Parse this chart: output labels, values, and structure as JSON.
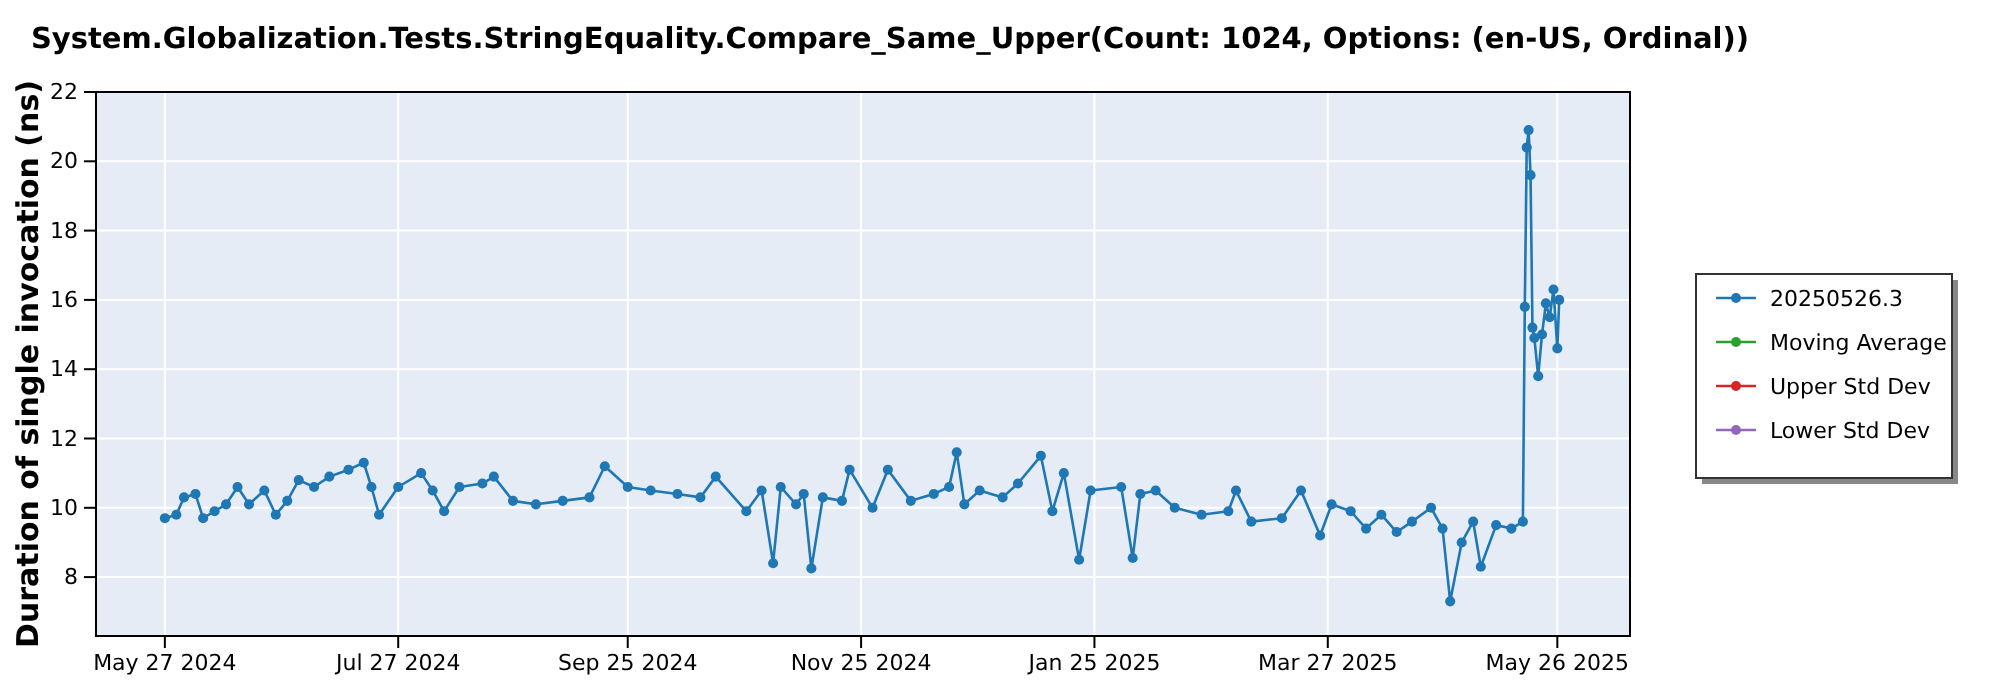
{
  "chart_data": {
    "type": "line",
    "title": "System.Globalization.Tests.StringEquality.Compare_Same_Upper(Count: 1024, Options: (en-US, Ordinal))",
    "ylabel": "Duration of single invocation (ns)",
    "xlim": [
      "2024-05-09",
      "2025-06-14"
    ],
    "ylim": [
      6.3,
      22
    ],
    "xticks": [
      {
        "value": "2024-05-27",
        "label": "May 27 2024"
      },
      {
        "value": "2024-07-27",
        "label": "Jul 27 2024"
      },
      {
        "value": "2024-09-25",
        "label": "Sep 25 2024"
      },
      {
        "value": "2024-11-25",
        "label": "Nov 25 2024"
      },
      {
        "value": "2025-01-25",
        "label": "Jan 25 2025"
      },
      {
        "value": "2025-03-27",
        "label": "Mar 27 2025"
      },
      {
        "value": "2025-05-26",
        "label": "May 26 2025"
      }
    ],
    "yticks": [
      8,
      10,
      12,
      14,
      16,
      18,
      20,
      22
    ],
    "grid": true,
    "legend": "right",
    "marker": "circle",
    "line_style": "solid",
    "series": [
      {
        "name": "20250526.3",
        "color": "#1f77b4",
        "x": [
          "2024-05-27",
          "2024-05-30",
          "2024-06-01",
          "2024-06-04",
          "2024-06-06",
          "2024-06-09",
          "2024-06-12",
          "2024-06-15",
          "2024-06-18",
          "2024-06-22",
          "2024-06-25",
          "2024-06-28",
          "2024-07-01",
          "2024-07-05",
          "2024-07-09",
          "2024-07-14",
          "2024-07-18",
          "2024-07-20",
          "2024-07-22",
          "2024-07-27",
          "2024-08-02",
          "2024-08-05",
          "2024-08-08",
          "2024-08-12",
          "2024-08-18",
          "2024-08-21",
          "2024-08-26",
          "2024-09-01",
          "2024-09-08",
          "2024-09-15",
          "2024-09-19",
          "2024-09-25",
          "2024-10-01",
          "2024-10-08",
          "2024-10-14",
          "2024-10-18",
          "2024-10-26",
          "2024-10-30",
          "2024-11-02",
          "2024-11-04",
          "2024-11-08",
          "2024-11-10",
          "2024-11-12",
          "2024-11-15",
          "2024-11-20",
          "2024-11-22",
          "2024-11-28",
          "2024-12-02",
          "2024-12-08",
          "2024-12-14",
          "2024-12-18",
          "2024-12-20",
          "2024-12-22",
          "2024-12-26",
          "2025-01-01",
          "2025-01-05",
          "2025-01-11",
          "2025-01-14",
          "2025-01-17",
          "2025-01-21",
          "2025-01-24",
          "2025-02-01",
          "2025-02-04",
          "2025-02-06",
          "2025-02-10",
          "2025-02-15",
          "2025-02-22",
          "2025-03-01",
          "2025-03-03",
          "2025-03-07",
          "2025-03-15",
          "2025-03-20",
          "2025-03-25",
          "2025-03-28",
          "2025-04-02",
          "2025-04-06",
          "2025-04-10",
          "2025-04-14",
          "2025-04-18",
          "2025-04-23",
          "2025-04-26",
          "2025-04-28",
          "2025-05-01",
          "2025-05-04",
          "2025-05-06",
          "2025-05-10",
          "2025-05-14",
          "2025-05-17",
          "2025-05-17T12:00",
          "2025-05-18",
          "2025-05-18T12:00",
          "2025-05-19",
          "2025-05-19T12:00",
          "2025-05-20",
          "2025-05-21",
          "2025-05-22",
          "2025-05-23",
          "2025-05-24",
          "2025-05-25",
          "2025-05-26",
          "2025-05-26T12:00"
        ],
        "values": [
          9.7,
          9.8,
          10.3,
          10.4,
          9.7,
          9.9,
          10.1,
          10.6,
          10.1,
          10.5,
          9.8,
          10.2,
          10.8,
          10.6,
          10.9,
          11.1,
          11.3,
          10.6,
          9.8,
          10.6,
          11.0,
          10.5,
          9.9,
          10.6,
          10.7,
          10.9,
          10.2,
          10.1,
          10.2,
          10.3,
          11.2,
          10.6,
          10.5,
          10.4,
          10.3,
          10.9,
          9.9,
          10.5,
          8.4,
          10.6,
          10.1,
          10.4,
          8.25,
          10.3,
          10.2,
          11.1,
          10.0,
          11.1,
          10.2,
          10.4,
          10.6,
          11.6,
          10.1,
          10.5,
          10.3,
          10.7,
          11.5,
          9.9,
          11.0,
          8.5,
          10.5,
          10.6,
          8.55,
          10.4,
          10.5,
          10.0,
          9.8,
          9.9,
          10.5,
          9.6,
          9.7,
          10.5,
          9.2,
          10.1,
          9.9,
          9.4,
          9.8,
          9.3,
          9.6,
          10.0,
          9.4,
          7.3,
          9.0,
          9.6,
          8.3,
          9.5,
          9.4,
          9.6,
          15.8,
          20.4,
          20.9,
          19.6,
          15.2,
          14.9,
          13.8,
          15.0,
          15.9,
          15.5,
          16.3,
          14.6,
          16.0
        ]
      },
      {
        "name": "Moving Average",
        "color": "#2ca02c"
      },
      {
        "name": "Upper Std Dev",
        "color": "#d62728"
      },
      {
        "name": "Lower Std Dev",
        "color": "#9467bd"
      }
    ]
  }
}
